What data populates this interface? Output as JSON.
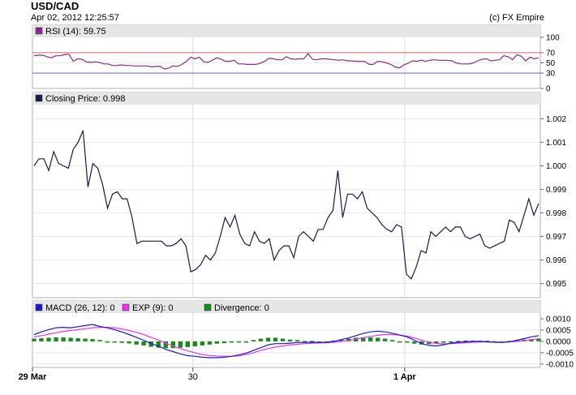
{
  "header": {
    "title": "USD/CAD",
    "timestamp": "Apr 02, 2012 12:25:57",
    "credit": "(c) FX Empire"
  },
  "colors": {
    "price_line": "#1a1a4a",
    "rsi_line": "#8b2a8b",
    "rsi_upper_line": "#e06060",
    "rsi_lower_line": "#6060e0",
    "macd_line": "#1a1acc",
    "exp_line": "#ee33ee",
    "divergence_bar": "#1a8a1a",
    "panel_header": "#e6e6e6",
    "grid": "#dcdcdc",
    "panel_border": "#b0b0b0"
  },
  "chart_data": [
    {
      "type": "line",
      "panel": "rsi",
      "legend": "RSI (14): 59.75",
      "ylim": [
        0,
        100
      ],
      "yticks": [
        "100",
        "70",
        "50",
        "30",
        "0"
      ],
      "ytick_values": [
        100,
        70,
        50,
        30,
        0
      ],
      "reference_lines": [
        70,
        30
      ],
      "values": [
        64,
        65,
        65,
        62,
        60,
        64,
        64,
        66,
        67,
        53,
        58,
        57,
        52,
        51,
        52,
        51,
        48,
        48,
        45,
        45,
        46,
        45,
        45,
        44,
        44,
        44,
        44,
        42,
        43,
        43,
        38,
        40,
        44,
        43,
        47,
        53,
        61,
        58,
        61,
        52,
        51,
        55,
        60,
        57,
        53,
        53,
        55,
        48,
        48,
        47,
        47,
        47,
        49,
        53,
        59,
        58,
        56,
        56,
        62,
        58,
        57,
        58,
        58,
        68,
        57,
        56,
        58,
        58,
        57,
        56,
        55,
        56,
        54,
        54,
        53,
        53,
        53,
        47,
        47,
        53,
        52,
        50,
        47,
        42,
        40,
        46,
        49,
        54,
        53,
        55,
        53,
        55,
        56,
        55,
        55,
        55,
        54,
        50,
        48,
        48,
        48,
        50,
        54,
        57,
        58,
        54,
        55,
        56,
        64,
        62,
        56,
        66,
        63,
        54,
        61,
        58,
        60
      ]
    },
    {
      "type": "line",
      "panel": "price",
      "legend": "Closing Price: 0.998",
      "ylim": [
        0.9944,
        1.0026
      ],
      "yticks": [
        "1.002",
        "1.001",
        "1.000",
        "0.999",
        "0.998",
        "0.997",
        "0.996",
        "0.995"
      ],
      "ytick_values": [
        1.002,
        1.001,
        1.0,
        0.999,
        0.998,
        0.997,
        0.996,
        0.995
      ],
      "values": [
        1.0,
        1.0003,
        1.0003,
        0.9998,
        1.0006,
        1.0001,
        1.0,
        0.9999,
        1.0007,
        1.001,
        1.0015,
        0.9991,
        1.0001,
        0.9999,
        0.9992,
        0.9982,
        0.9988,
        0.9989,
        0.9986,
        0.9986,
        0.9978,
        0.9967,
        0.9968,
        0.9968,
        0.9968,
        0.9968,
        0.9968,
        0.9966,
        0.9966,
        0.9967,
        0.9969,
        0.9966,
        0.9955,
        0.9956,
        0.9958,
        0.9962,
        0.996,
        0.9963,
        0.997,
        0.9978,
        0.9974,
        0.9979,
        0.9971,
        0.9967,
        0.9966,
        0.9972,
        0.9968,
        0.9967,
        0.9969,
        0.996,
        0.9964,
        0.9966,
        0.9966,
        0.9961,
        0.997,
        0.9972,
        0.997,
        0.9968,
        0.9973,
        0.9973,
        0.9978,
        0.9981,
        0.9998,
        0.9978,
        0.9988,
        0.9988,
        0.9986,
        0.9989,
        0.9982,
        0.998,
        0.9978,
        0.9975,
        0.9973,
        0.9972,
        0.9975,
        0.9974,
        0.9954,
        0.9952,
        0.9957,
        0.9964,
        0.9963,
        0.9972,
        0.997,
        0.9972,
        0.9974,
        0.9972,
        0.9974,
        0.9974,
        0.997,
        0.9969,
        0.997,
        0.9971,
        0.9966,
        0.9965,
        0.9966,
        0.9967,
        0.9968,
        0.9977,
        0.9976,
        0.9972,
        0.9979,
        0.9986,
        0.9979,
        0.9984
      ]
    },
    {
      "type": "line",
      "panel": "macd",
      "legend_items": [
        "MACD (26, 12): 0",
        "EXP (9): 0",
        "Divergence: 0"
      ],
      "ylim": [
        -0.00115,
        0.00125
      ],
      "yticks": [
        "0.0010",
        "0.0005",
        "0.0000",
        "-0.0005",
        "-0.0010"
      ],
      "ytick_values": [
        0.001,
        0.0005,
        0.0,
        -0.0005,
        -0.001
      ],
      "macd": [
        0.0003,
        0.00042,
        0.00052,
        0.0006,
        0.00062,
        0.0006,
        0.00065,
        0.0007,
        0.00075,
        0.00066,
        0.0006,
        0.00052,
        0.00042,
        0.0003,
        0.00018,
        5e-05,
        -0.0001,
        -0.0002,
        -0.00035,
        -0.00045,
        -0.00055,
        -0.00063,
        -0.00066,
        -0.0007,
        -0.00072,
        -0.00072,
        -0.0007,
        -0.00066,
        -0.0006,
        -0.00052,
        -0.0004,
        -0.00028,
        -0.00015,
        -0.0001,
        -0.0001,
        -8e-05,
        -5e-05,
        -5e-05,
        -4e-05,
        -5e-05,
        -4e-05,
        0.0,
        8e-05,
        0.00015,
        0.00025,
        0.00035,
        0.00042,
        0.00045,
        0.00042,
        0.00036,
        0.00028,
        0.0002,
        5e-05,
        -0.0001,
        -0.00018,
        -0.0002,
        -0.00015,
        -8e-05,
        -4e-05,
        -2e-05,
        0.0,
        0.0,
        -2e-05,
        -4e-05,
        -5e-05,
        -2e-05,
        5e-05,
        0.00012,
        0.0002,
        0.00025
      ],
      "exp": [
        0.0002,
        0.00025,
        0.00032,
        0.00038,
        0.00044,
        0.00048,
        0.00052,
        0.00056,
        0.0006,
        0.00062,
        0.00062,
        0.0006,
        0.00055,
        0.00048,
        0.0004,
        0.0003,
        0.00018,
        6e-05,
        -8e-05,
        -0.0002,
        -0.00032,
        -0.00042,
        -0.0005,
        -0.00058,
        -0.00062,
        -0.00065,
        -0.00066,
        -0.00066,
        -0.00064,
        -0.00058,
        -0.0005,
        -0.0004,
        -0.00032,
        -0.00025,
        -0.0002,
        -0.00016,
        -0.00013,
        -0.0001,
        -8e-05,
        -7e-05,
        -6e-05,
        -4e-05,
        0.0,
        4e-05,
        0.0001,
        0.00016,
        0.00022,
        0.00027,
        0.0003,
        0.0003,
        0.00028,
        0.00023,
        0.00015,
        5e-05,
        -4e-05,
        -9e-05,
        -0.00011,
        -0.0001,
        -8e-05,
        -6e-05,
        -4e-05,
        -3e-05,
        -3e-05,
        -3e-05,
        -3e-05,
        -2e-05,
        0.0,
        4e-05,
        8e-05,
        0.00012
      ],
      "divergence": [
        0.00012,
        0.00014,
        0.00016,
        0.00018,
        0.00018,
        0.00016,
        0.00014,
        0.00012,
        0.0001,
        6e-05,
        0.0,
        -3e-05,
        -6e-05,
        -9e-05,
        -0.00014,
        -0.00018,
        -0.00024,
        -0.00028,
        -0.0003,
        -0.0003,
        -0.00028,
        -0.00025,
        -0.00022,
        -0.00018,
        -0.00014,
        -0.0001,
        -8e-05,
        -5e-05,
        -3e-05,
        0.0,
        6e-05,
        0.00012,
        0.00016,
        0.00016,
        0.00012,
        8e-05,
        6e-05,
        2e-05,
        2e-05,
        0.0,
        -2e-05,
        4e-05,
        8e-05,
        0.00012,
        0.00016,
        0.00018,
        0.00018,
        0.00016,
        0.00012,
        6e-05,
        0.0,
        -4e-05,
        -0.0001,
        -0.00014,
        -0.00012,
        -0.0001,
        -6e-05,
        -2e-05,
        2e-05,
        4e-05,
        4e-05,
        3e-05,
        3e-05,
        1e-05,
        0.0,
        2e-05,
        6e-05,
        8e-05,
        0.0001,
        0.00012
      ]
    }
  ],
  "x_axis": {
    "labels": [
      "29 Mar",
      "30",
      "1 Apr"
    ],
    "label_fractions": [
      0.0,
      0.316,
      0.733
    ],
    "bold": [
      true,
      false,
      true
    ]
  }
}
